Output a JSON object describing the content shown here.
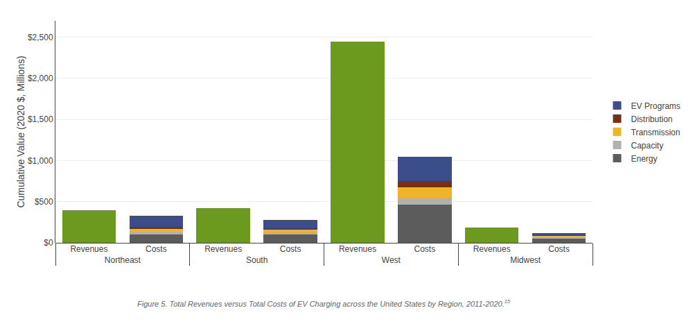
{
  "chart_data": {
    "type": "bar",
    "stacked": true,
    "ylabel": "Cumulative Value (2020 $, Millions)",
    "caption": "Figure 5. Total Revenues versus Total Costs of EV Charging across the United States by Region, 2011-2020.",
    "caption_superscript": "15",
    "categories": [
      [
        "Northeast",
        "Revenues"
      ],
      [
        "Northeast",
        "Costs"
      ],
      [
        "South",
        "Revenues"
      ],
      [
        "South",
        "Costs"
      ],
      [
        "West",
        "Revenues"
      ],
      [
        "West",
        "Costs"
      ],
      [
        "Midwest",
        "Revenues"
      ],
      [
        "Midwest",
        "Costs"
      ]
    ],
    "series": [
      {
        "color": "#6b9a1e",
        "values": [
          400,
          null,
          420,
          null,
          2450,
          null,
          185,
          null
        ]
      },
      {
        "name": "Energy",
        "color": "#5c5c5c",
        "values": [
          null,
          105,
          null,
          100,
          null,
          465,
          null,
          55
        ]
      },
      {
        "name": "Capacity",
        "color": "#b0b0b0",
        "values": [
          null,
          30,
          null,
          30,
          null,
          80,
          null,
          15
        ]
      },
      {
        "name": "Transmission",
        "color": "#f0b429",
        "values": [
          null,
          30,
          null,
          28,
          null,
          130,
          null,
          15
        ]
      },
      {
        "name": "Distribution",
        "color": "#7a3010",
        "values": [
          null,
          30,
          null,
          22,
          null,
          75,
          null,
          12
        ]
      },
      {
        "name": "EV Programs",
        "color": "#3b4d8a",
        "values": [
          null,
          130,
          null,
          100,
          null,
          300,
          null,
          23
        ]
      }
    ],
    "ylim": [
      0,
      2700
    ],
    "yticks": [
      {
        "value": 0,
        "label": "$0"
      },
      {
        "value": 500,
        "label": "$500"
      },
      {
        "value": 1000,
        "label": "$1,000"
      },
      {
        "value": 1500,
        "label": "$1,500"
      },
      {
        "value": 2000,
        "label": "$2,000"
      },
      {
        "value": 2500,
        "label": "$2,500"
      }
    ],
    "grid": true,
    "legend": "right"
  }
}
